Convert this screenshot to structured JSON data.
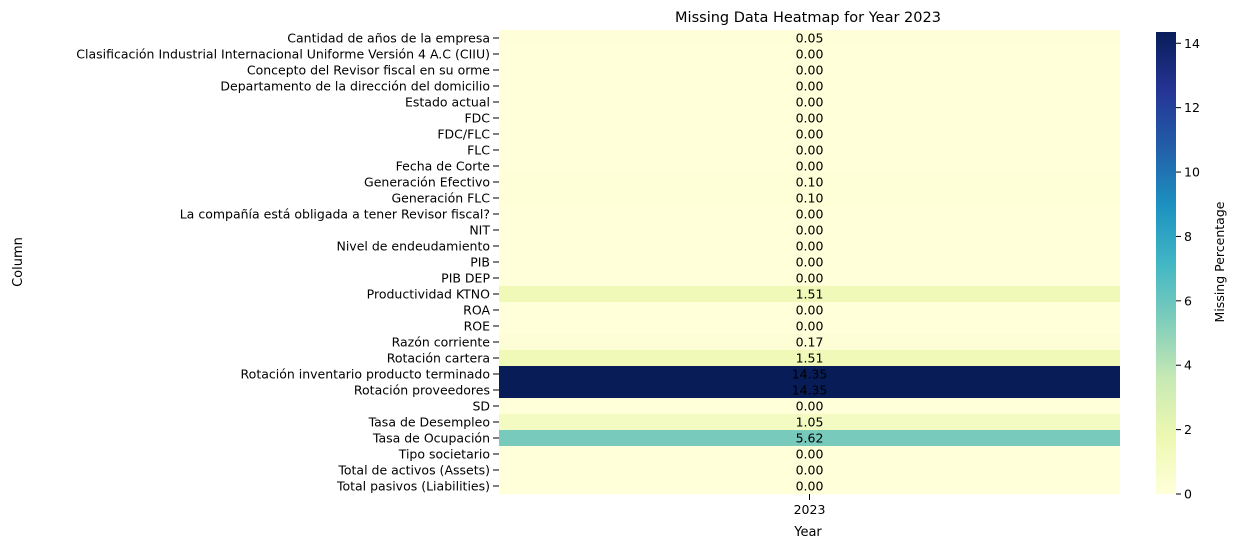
{
  "chart_data": {
    "type": "heatmap",
    "title": "Missing Data Heatmap for Year 2023",
    "xlabel": "Year",
    "ylabel": "Column",
    "x_categories": [
      "2023"
    ],
    "rows": [
      "Cantidad de años de la empresa",
      "Clasificación Industrial Internacional Uniforme Versión 4 A.C (CIIU)",
      "Concepto del Revisor fiscal en su orme",
      "Departamento de la dirección del domicilio",
      "Estado actual",
      "FDC",
      "FDC/FLC",
      "FLC",
      "Fecha de Corte",
      "Generación Efectivo",
      "Generación FLC",
      "La compañía está obligada a tener Revisor fiscal?",
      "NIT",
      "Nivel de endeudamiento",
      "PIB",
      "PIB DEP",
      "Productividad KTNO",
      "ROA",
      "ROE",
      "Razón corriente",
      "Rotación cartera",
      "Rotación inventario producto terminado",
      "Rotación proveedores",
      "SD",
      "Tasa de Desempleo",
      "Tasa de Ocupación",
      "Tipo societario",
      "Total de activos (Assets)",
      "Total pasivos (Liabilities)"
    ],
    "values": [
      0.05,
      0.0,
      0.0,
      0.0,
      0.0,
      0.0,
      0.0,
      0.0,
      0.0,
      0.1,
      0.1,
      0.0,
      0.0,
      0.0,
      0.0,
      0.0,
      1.51,
      0.0,
      0.0,
      0.17,
      1.51,
      14.35,
      14.35,
      0.0,
      1.05,
      5.62,
      0.0,
      0.0,
      0.0
    ],
    "value_labels": [
      "0.05",
      "0.00",
      "0.00",
      "0.00",
      "0.00",
      "0.00",
      "0.00",
      "0.00",
      "0.00",
      "0.10",
      "0.10",
      "0.00",
      "0.00",
      "0.00",
      "0.00",
      "0.00",
      "1.51",
      "0.00",
      "0.00",
      "0.17",
      "1.51",
      "14.35",
      "14.35",
      "0.00",
      "1.05",
      "5.62",
      "0.00",
      "0.00",
      "0.00"
    ],
    "colorbar": {
      "label": "Missing Percentage",
      "min": 0,
      "max": 14.35,
      "ticks": [
        0,
        2,
        4,
        6,
        8,
        10,
        12,
        14
      ],
      "colormap": "YlGnBu"
    },
    "grid": false
  }
}
